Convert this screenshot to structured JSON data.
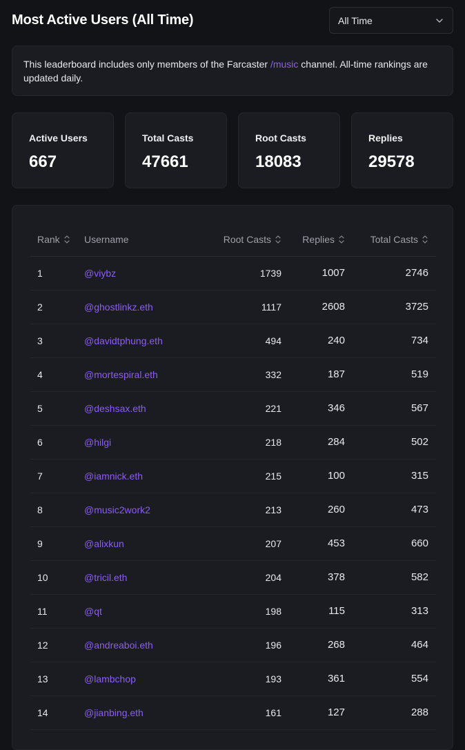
{
  "header": {
    "title": "Most Active Users (All Time)",
    "range_select": {
      "value": "All Time",
      "icon": "chevron-down-icon"
    }
  },
  "notice": {
    "text_before": "This leaderboard includes only members of the Farcaster ",
    "link": "/music",
    "text_after": " channel. All-time rankings are updated daily."
  },
  "stats": [
    {
      "label": "Active Users",
      "value": "667"
    },
    {
      "label": "Total Casts",
      "value": "47661"
    },
    {
      "label": "Root Casts",
      "value": "18083"
    },
    {
      "label": "Replies",
      "value": "29578"
    }
  ],
  "table": {
    "columns": {
      "rank": "Rank",
      "username": "Username",
      "root_casts": "Root Casts",
      "replies": "Replies",
      "total_casts": "Total Casts"
    },
    "rows": [
      {
        "rank": "1",
        "username": "@viybz",
        "root": "1739",
        "replies": "1007",
        "total": "2746"
      },
      {
        "rank": "2",
        "username": "@ghostlinkz.eth",
        "root": "1117",
        "replies": "2608",
        "total": "3725"
      },
      {
        "rank": "3",
        "username": "@davidtphung.eth",
        "root": "494",
        "replies": "240",
        "total": "734"
      },
      {
        "rank": "4",
        "username": "@mortespiral.eth",
        "root": "332",
        "replies": "187",
        "total": "519"
      },
      {
        "rank": "5",
        "username": "@deshsax.eth",
        "root": "221",
        "replies": "346",
        "total": "567"
      },
      {
        "rank": "6",
        "username": "@hilgi",
        "root": "218",
        "replies": "284",
        "total": "502"
      },
      {
        "rank": "7",
        "username": "@iamnick.eth",
        "root": "215",
        "replies": "100",
        "total": "315"
      },
      {
        "rank": "8",
        "username": "@music2work2",
        "root": "213",
        "replies": "260",
        "total": "473"
      },
      {
        "rank": "9",
        "username": "@alixkun",
        "root": "207",
        "replies": "453",
        "total": "660"
      },
      {
        "rank": "10",
        "username": "@tricil.eth",
        "root": "204",
        "replies": "378",
        "total": "582"
      },
      {
        "rank": "11",
        "username": "@qt",
        "root": "198",
        "replies": "115",
        "total": "313"
      },
      {
        "rank": "12",
        "username": "@andreaboi.eth",
        "root": "196",
        "replies": "268",
        "total": "464"
      },
      {
        "rank": "13",
        "username": "@lambchop",
        "root": "193",
        "replies": "361",
        "total": "554"
      },
      {
        "rank": "14",
        "username": "@jianbing.eth",
        "root": "161",
        "replies": "127",
        "total": "288"
      }
    ]
  },
  "colors": {
    "accent": "#8b5cf6",
    "background": "#121317",
    "card": "#1b1c21"
  }
}
